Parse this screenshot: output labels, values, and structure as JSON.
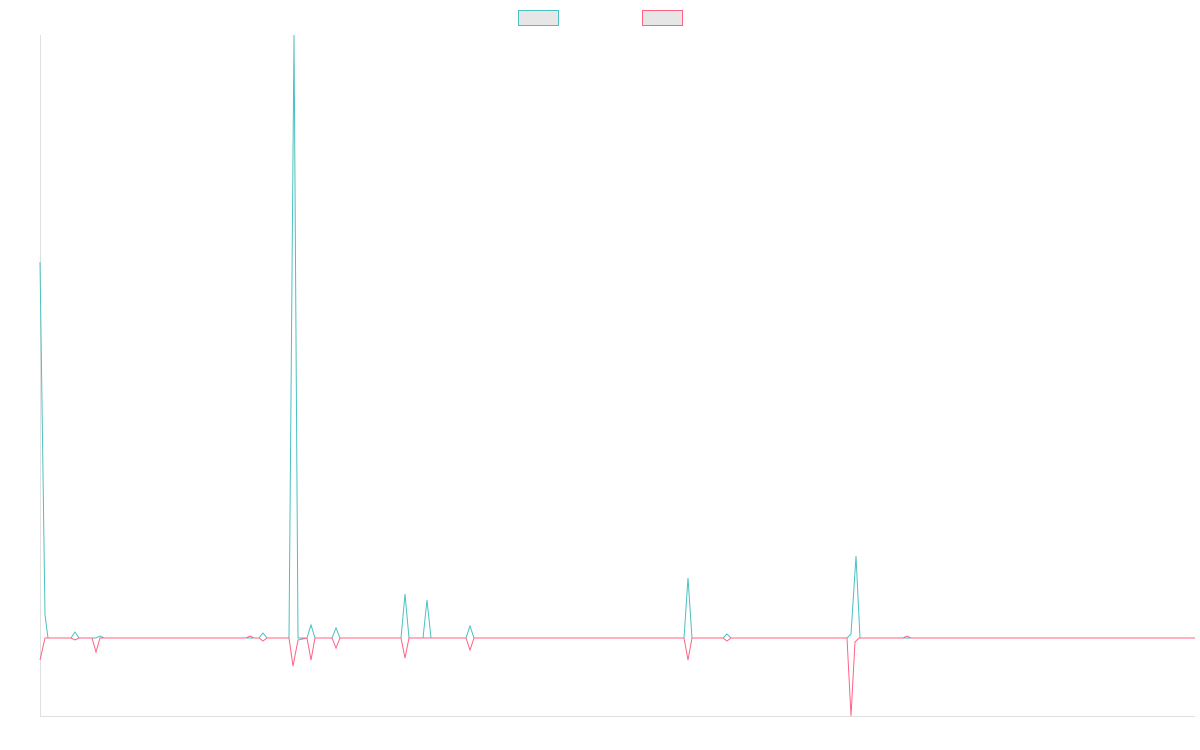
{
  "chart_data": {
    "type": "line",
    "legend": "top",
    "xlim": [
      0,
      1155
    ],
    "ylim": [
      -78,
      603
    ],
    "series": [
      {
        "color": "#4bc0c0",
        "x": [
          0,
          5,
          8,
          31,
          35,
          39,
          56,
          60,
          64,
          219,
          223,
          227,
          249,
          254,
          258,
          267,
          271,
          275,
          292,
          296,
          300,
          361,
          365,
          369,
          383,
          387,
          391,
          426,
          430,
          434,
          644,
          648,
          652,
          683,
          687,
          691,
          807,
          811,
          816,
          820,
          1155
        ],
        "values": [
          376,
          23,
          0,
          0,
          6,
          0,
          0,
          2,
          0,
          0,
          5,
          0,
          0,
          603,
          0,
          0,
          13,
          0,
          0,
          10,
          0,
          0,
          44,
          0,
          0,
          38,
          0,
          0,
          12,
          0,
          0,
          60,
          0,
          0,
          4,
          0,
          0,
          4,
          82,
          0,
          0
        ]
      },
      {
        "color": "#ff6384",
        "x": [
          0,
          5,
          31,
          35,
          39,
          52,
          56,
          60,
          206,
          210,
          214,
          219,
          223,
          227,
          249,
          253,
          258,
          267,
          271,
          275,
          292,
          296,
          300,
          361,
          365,
          369,
          426,
          430,
          434,
          644,
          648,
          652,
          683,
          687,
          691,
          807,
          811,
          815,
          819,
          863,
          867,
          871,
          1155
        ],
        "values": [
          -22,
          0,
          0,
          -2,
          0,
          0,
          -14,
          0,
          0,
          2,
          0,
          0,
          -3,
          0,
          0,
          -28,
          -2,
          0,
          -22,
          0,
          0,
          -10,
          0,
          0,
          -20,
          0,
          0,
          -12,
          0,
          0,
          -22,
          0,
          0,
          -3,
          0,
          0,
          -78,
          -4,
          0,
          0,
          2,
          0,
          0
        ]
      }
    ]
  }
}
